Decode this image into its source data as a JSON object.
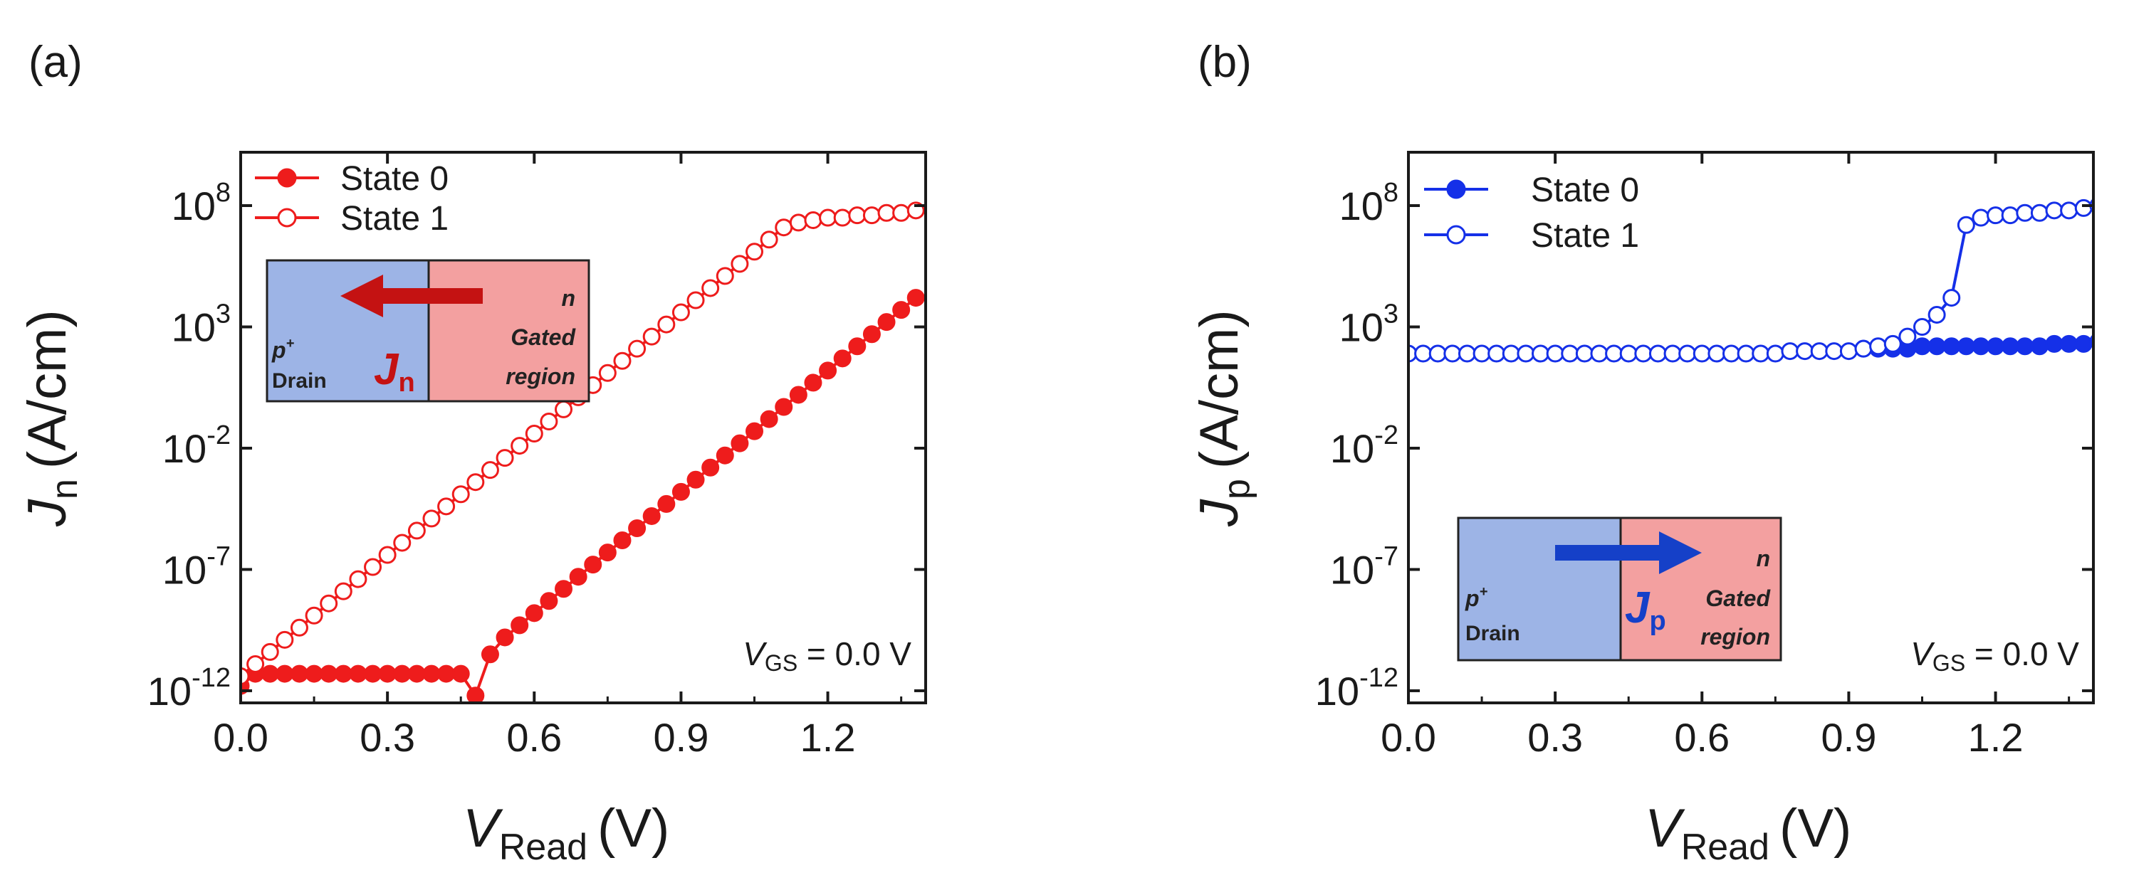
{
  "chart_data": [
    {
      "panel": "(a)",
      "type": "line",
      "xlabel": "V",
      "xlabel_sub": "Read",
      "xunit": "(V)",
      "ylabel": "J",
      "ylabel_sub": "n",
      "yunit": "(A/cm)",
      "xlim": [
        0.0,
        1.4
      ],
      "ylim_log10": [
        -12.5,
        10.2
      ],
      "xticks": [
        "0.0",
        "0.3",
        "0.6",
        "0.9",
        "1.2"
      ],
      "yticks": [
        {
          "base": "10",
          "exp": "8",
          "value": 8
        },
        {
          "base": "10",
          "exp": "3",
          "value": 3
        },
        {
          "base": "10",
          "exp": "-2",
          "value": -2
        },
        {
          "base": "10",
          "exp": "-7",
          "value": -7
        },
        {
          "base": "10",
          "exp": "-12",
          "value": -12
        }
      ],
      "color": "#ee1c1c",
      "legend": [
        "State 0",
        "State 1"
      ],
      "annotation": {
        "text": "V",
        "sub": "GS",
        "rest": " = 0.0 V"
      },
      "inset": {
        "left_top": "p",
        "left_sup": "+",
        "left_bottom": "Drain",
        "right_top": "n",
        "right_mid": "Gated",
        "right_bottom": "region",
        "current": "J",
        "current_sub": "n",
        "arrow": "left"
      },
      "series": [
        {
          "name": "State 0",
          "marker": "filled",
          "x": [
            0.0,
            0.03,
            0.06,
            0.09,
            0.12,
            0.15,
            0.18,
            0.21,
            0.24,
            0.27,
            0.3,
            0.33,
            0.36,
            0.39,
            0.42,
            0.45,
            0.48,
            0.51,
            0.54,
            0.57,
            0.6,
            0.63,
            0.66,
            0.69,
            0.72,
            0.75,
            0.78,
            0.81,
            0.84,
            0.87,
            0.9,
            0.93,
            0.96,
            0.99,
            1.02,
            1.05,
            1.08,
            1.11,
            1.14,
            1.17,
            1.2,
            1.23,
            1.26,
            1.29,
            1.32,
            1.35,
            1.38
          ],
          "log10y": [
            -11.8,
            -11.3,
            -11.3,
            -11.3,
            -11.3,
            -11.3,
            -11.3,
            -11.3,
            -11.3,
            -11.3,
            -11.3,
            -11.3,
            -11.3,
            -11.3,
            -11.3,
            -11.3,
            -12.2,
            -10.5,
            -9.8,
            -9.3,
            -8.8,
            -8.3,
            -7.8,
            -7.3,
            -6.8,
            -6.3,
            -5.8,
            -5.3,
            -4.8,
            -4.3,
            -3.8,
            -3.3,
            -2.8,
            -2.3,
            -1.8,
            -1.3,
            -0.8,
            -0.3,
            0.2,
            0.7,
            1.2,
            1.7,
            2.2,
            2.7,
            3.2,
            3.7,
            4.2
          ]
        },
        {
          "name": "State 1",
          "marker": "open",
          "x": [
            0.0,
            0.03,
            0.06,
            0.09,
            0.12,
            0.15,
            0.18,
            0.21,
            0.24,
            0.27,
            0.3,
            0.33,
            0.36,
            0.39,
            0.42,
            0.45,
            0.48,
            0.51,
            0.54,
            0.57,
            0.6,
            0.63,
            0.66,
            0.69,
            0.72,
            0.75,
            0.78,
            0.81,
            0.84,
            0.87,
            0.9,
            0.93,
            0.96,
            0.99,
            1.02,
            1.05,
            1.08,
            1.11,
            1.14,
            1.17,
            1.2,
            1.23,
            1.26,
            1.29,
            1.32,
            1.35,
            1.38
          ],
          "log10y": [
            -11.4,
            -10.9,
            -10.4,
            -9.9,
            -9.4,
            -8.9,
            -8.4,
            -7.9,
            -7.4,
            -6.9,
            -6.4,
            -5.9,
            -5.4,
            -4.9,
            -4.4,
            -3.9,
            -3.4,
            -2.9,
            -2.4,
            -1.9,
            -1.4,
            -0.9,
            -0.4,
            0.1,
            0.6,
            1.1,
            1.6,
            2.1,
            2.6,
            3.1,
            3.6,
            4.1,
            4.6,
            5.1,
            5.6,
            6.1,
            6.6,
            7.1,
            7.3,
            7.4,
            7.5,
            7.5,
            7.6,
            7.6,
            7.7,
            7.7,
            7.8
          ]
        }
      ]
    },
    {
      "panel": "(b)",
      "type": "line",
      "xlabel": "V",
      "xlabel_sub": "Read",
      "xunit": "(V)",
      "ylabel": "J",
      "ylabel_sub": "p",
      "yunit": "(A/cm)",
      "xlim": [
        0.0,
        1.4
      ],
      "ylim_log10": [
        -12.5,
        10.2
      ],
      "xticks": [
        "0.0",
        "0.3",
        "0.6",
        "0.9",
        "1.2"
      ],
      "yticks": [
        {
          "base": "10",
          "exp": "8",
          "value": 8
        },
        {
          "base": "10",
          "exp": "3",
          "value": 3
        },
        {
          "base": "10",
          "exp": "-2",
          "value": -2
        },
        {
          "base": "10",
          "exp": "-7",
          "value": -7
        },
        {
          "base": "10",
          "exp": "-12",
          "value": -12
        }
      ],
      "color": "#1530e8",
      "legend": [
        "State 0",
        "State 1"
      ],
      "annotation": {
        "text": "V",
        "sub": "GS",
        "rest": " = 0.0 V"
      },
      "inset": {
        "left_top": "p",
        "left_sup": "+",
        "left_bottom": "Drain",
        "right_top": "n",
        "right_mid": "Gated",
        "right_bottom": "region",
        "current": "J",
        "current_sub": "p",
        "arrow": "right"
      },
      "series": [
        {
          "name": "State 0",
          "marker": "filled",
          "x": [
            0.93,
            0.96,
            0.99,
            1.02,
            1.05,
            1.08,
            1.11,
            1.14,
            1.17,
            1.2,
            1.23,
            1.26,
            1.29,
            1.32,
            1.35,
            1.38,
            1.41
          ],
          "log10y": [
            2.1,
            2.1,
            2.1,
            2.1,
            2.2,
            2.2,
            2.2,
            2.2,
            2.2,
            2.2,
            2.2,
            2.2,
            2.2,
            2.3,
            2.3,
            2.3,
            2.4
          ]
        },
        {
          "name": "State 1",
          "marker": "open",
          "x": [
            0.0,
            0.03,
            0.06,
            0.09,
            0.12,
            0.15,
            0.18,
            0.21,
            0.24,
            0.27,
            0.3,
            0.33,
            0.36,
            0.39,
            0.42,
            0.45,
            0.48,
            0.51,
            0.54,
            0.57,
            0.6,
            0.63,
            0.66,
            0.69,
            0.72,
            0.75,
            0.78,
            0.81,
            0.84,
            0.87,
            0.9,
            0.93,
            0.96,
            0.99,
            1.02,
            1.05,
            1.08,
            1.11,
            1.14,
            1.17,
            1.2,
            1.23,
            1.26,
            1.29,
            1.32,
            1.35,
            1.38,
            1.41
          ],
          "log10y": [
            1.9,
            1.9,
            1.9,
            1.9,
            1.9,
            1.9,
            1.9,
            1.9,
            1.9,
            1.9,
            1.9,
            1.9,
            1.9,
            1.9,
            1.9,
            1.9,
            1.9,
            1.9,
            1.9,
            1.9,
            1.9,
            1.9,
            1.9,
            1.9,
            1.9,
            1.9,
            2.0,
            2.0,
            2.0,
            2.0,
            2.0,
            2.1,
            2.2,
            2.3,
            2.6,
            3.0,
            3.5,
            4.2,
            7.2,
            7.5,
            7.6,
            7.6,
            7.7,
            7.7,
            7.8,
            7.8,
            7.9,
            8.0
          ]
        }
      ]
    }
  ]
}
